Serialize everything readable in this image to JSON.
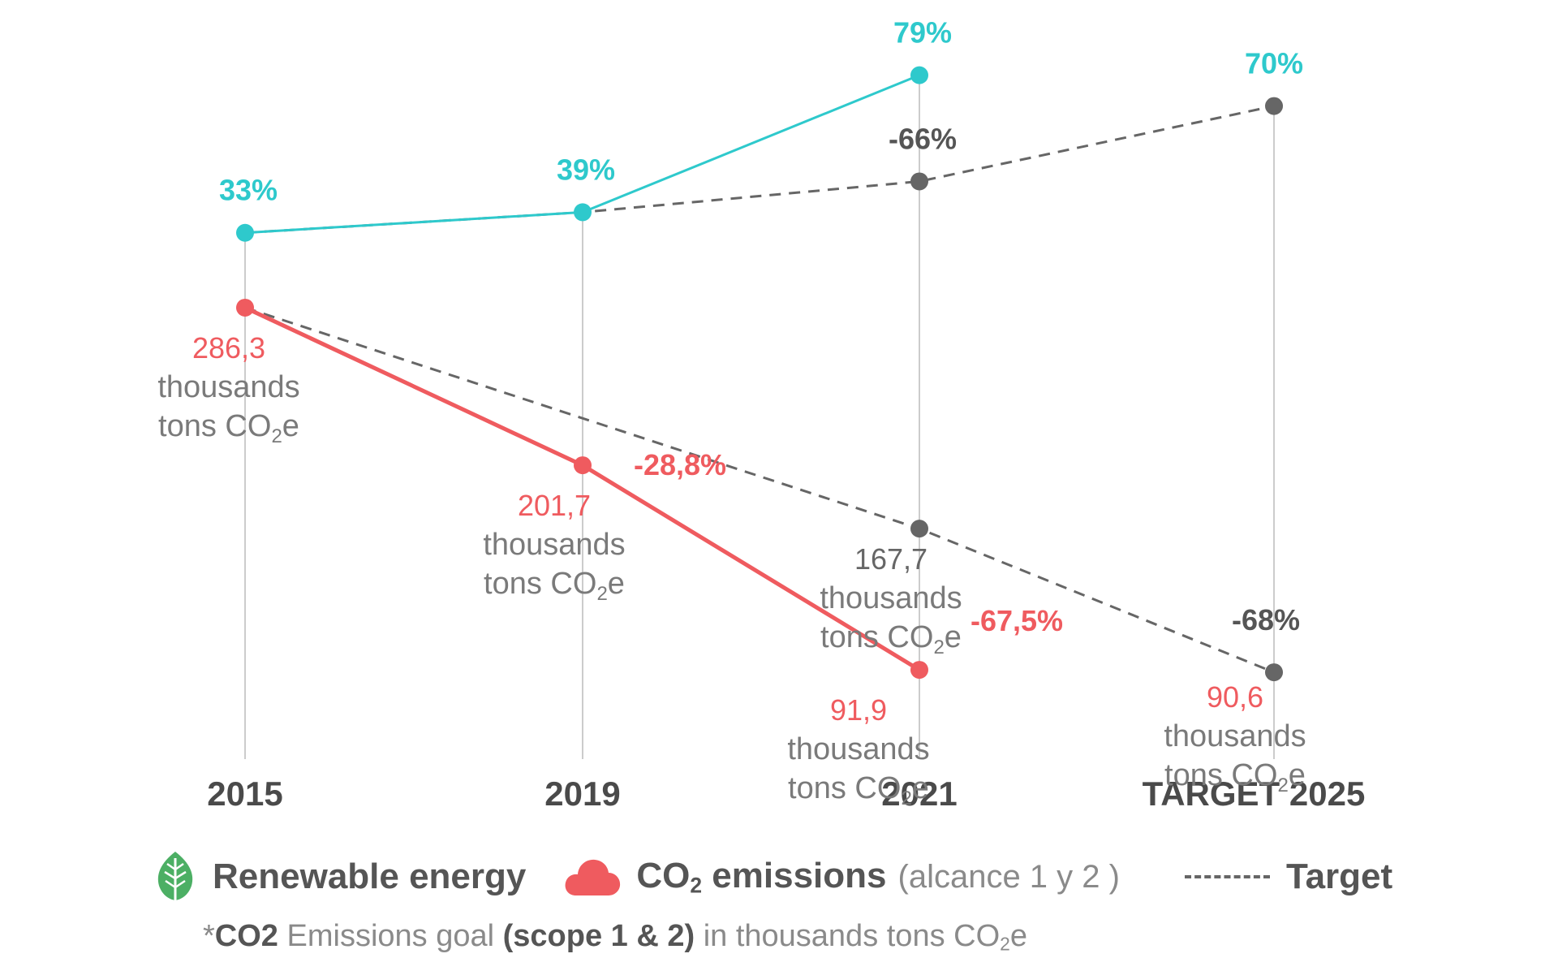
{
  "chart_data": {
    "type": "line",
    "categories": [
      "2015",
      "2019",
      "2021",
      "TARGET 2025"
    ],
    "series": [
      {
        "name": "Renewable energy",
        "color": "#2ec9cc",
        "values": [
          33,
          39,
          79,
          null
        ],
        "labels": [
          "33%",
          "39%",
          "79%",
          ""
        ]
      },
      {
        "name": "Renewable energy target",
        "color": "#666666",
        "style": "dashed",
        "values": [
          33,
          39,
          48,
          70
        ],
        "labels": [
          "",
          "",
          "",
          "70%"
        ],
        "extra_labels": [
          "",
          "",
          "-66%",
          ""
        ]
      },
      {
        "name": "CO2 emissions",
        "color": "#ef5b5f",
        "values": [
          286.3,
          201.7,
          91.9,
          null
        ],
        "value_labels": [
          "286,3",
          "201,7",
          "91,9",
          ""
        ],
        "change_labels": [
          "",
          "-28,8%",
          "-67,5%",
          ""
        ]
      },
      {
        "name": "CO2 emissions target",
        "color": "#666666",
        "style": "dashed",
        "values": [
          286.3,
          null,
          167.7,
          90.6
        ],
        "value_labels": [
          "",
          "",
          "167,7",
          "90,6"
        ],
        "change_labels": [
          "",
          "",
          "",
          "-68%"
        ]
      }
    ],
    "unit_line1": "thousands",
    "unit_line2_prefix": "tons CO",
    "unit_line2_sub": "2",
    "unit_line2_suffix": "e"
  },
  "legend": {
    "renewable_label": "Renewable energy",
    "co2_prefix": "CO",
    "co2_sub": "2",
    "co2_suffix": " emissions",
    "co2_note": "(alcance 1 y 2 )",
    "target_label": "Target",
    "leaf_icon": "leaf-icon",
    "cloud_icon": "cloud-icon"
  },
  "footnote": {
    "star": "*",
    "bold1": "CO2",
    "text1": " Emissions goal ",
    "bold2": "(scope 1 & 2)",
    "text2": " in thousands tons CO",
    "sub": "2",
    "suffix": "e"
  }
}
